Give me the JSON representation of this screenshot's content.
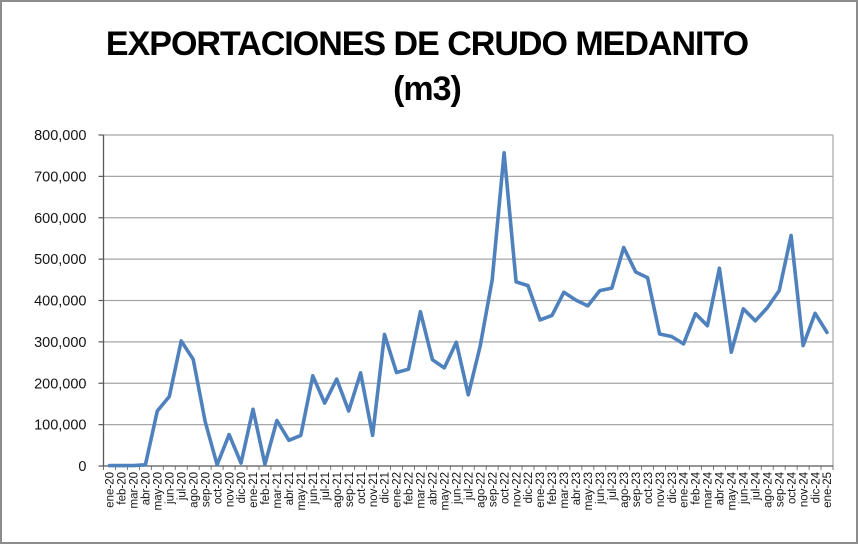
{
  "chart_data": {
    "type": "line",
    "title_line1": "EXPORTACIONES DE CRUDO MEDANITO",
    "title_line2": "(m3)",
    "xlabel": "",
    "ylabel": "",
    "ylim": [
      0,
      800000
    ],
    "ytick_step": 100000,
    "grid": true,
    "legend": "none",
    "categories": [
      "ene-20",
      "feb-20",
      "mar-20",
      "abr-20",
      "may-20",
      "jun-20",
      "jul-20",
      "ago-20",
      "sep-20",
      "oct-20",
      "nov-20",
      "dic-20",
      "ene-21",
      "feb-21",
      "mar-21",
      "abr-21",
      "may-21",
      "jun-21",
      "jul-21",
      "ago-21",
      "sep-21",
      "oct-21",
      "nov-21",
      "dic-21",
      "ene-22",
      "feb-22",
      "mar-22",
      "abr-22",
      "may-22",
      "jun-22",
      "jul-22",
      "ago-22",
      "sep-22",
      "oct-22",
      "nov-22",
      "dic-22",
      "ene-23",
      "feb-23",
      "mar-23",
      "abr-23",
      "may-23",
      "jun-23",
      "jul-23",
      "ago-23",
      "sep-23",
      "oct-23",
      "nov-23",
      "dic-23",
      "ene-24",
      "feb-24",
      "mar-24",
      "abr-24",
      "may-24",
      "jun-24",
      "jul-24",
      "ago-24",
      "sep-24",
      "oct-24",
      "nov-24",
      "dic-24",
      "ene-25"
    ],
    "values": [
      1000,
      1000,
      1000,
      3000,
      133000,
      168000,
      302000,
      258000,
      107000,
      3000,
      76000,
      7000,
      137000,
      4000,
      110000,
      62000,
      74000,
      218000,
      152000,
      210000,
      133000,
      225000,
      74000,
      318000,
      226000,
      234000,
      373000,
      257000,
      237000,
      299000,
      172000,
      290000,
      450000,
      757000,
      445000,
      436000,
      353000,
      364000,
      420000,
      401000,
      387000,
      424000,
      430000,
      528000,
      469000,
      455000,
      319000,
      313000,
      295000,
      368000,
      339000,
      478000,
      275000,
      380000,
      351000,
      382000,
      424000,
      557000,
      291000,
      369000,
      323000
    ],
    "colors": {
      "line": "#4F81BD",
      "gridline": "#A6A6A6",
      "axis": "#595959",
      "text": "#141414",
      "title": "#000000",
      "chart_border": "#8C8C8C",
      "background": "#FFFFFF"
    }
  }
}
